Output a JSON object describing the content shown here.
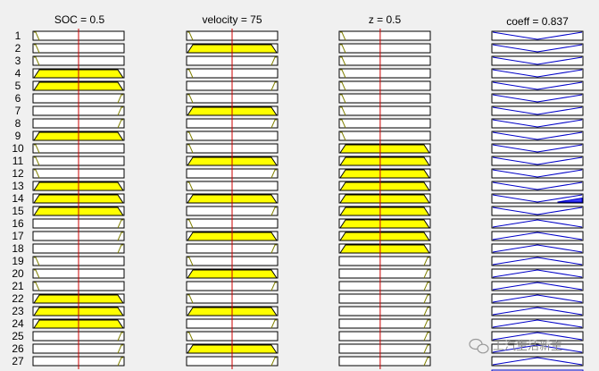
{
  "rule_viewer": {
    "rule_count": 27,
    "inputs": [
      {
        "title": "SOC = 0.5",
        "value": 0.5,
        "marker_fraction": 0.5,
        "rules": [
          {
            "rule": 1,
            "mf": "low",
            "fired": false
          },
          {
            "rule": 2,
            "mf": "low",
            "fired": false
          },
          {
            "rule": 3,
            "mf": "low",
            "fired": false
          },
          {
            "rule": 4,
            "mf": "medium",
            "fired": true
          },
          {
            "rule": 5,
            "mf": "medium",
            "fired": true
          },
          {
            "rule": 6,
            "mf": "high",
            "fired": false
          },
          {
            "rule": 7,
            "mf": "high",
            "fired": false
          },
          {
            "rule": 8,
            "mf": "high",
            "fired": false
          },
          {
            "rule": 9,
            "mf": "medium",
            "fired": true
          },
          {
            "rule": 10,
            "mf": "low",
            "fired": false
          },
          {
            "rule": 11,
            "mf": "low",
            "fired": false
          },
          {
            "rule": 12,
            "mf": "low",
            "fired": false
          },
          {
            "rule": 13,
            "mf": "medium",
            "fired": true
          },
          {
            "rule": 14,
            "mf": "medium",
            "fired": true
          },
          {
            "rule": 15,
            "mf": "medium",
            "fired": true
          },
          {
            "rule": 16,
            "mf": "high",
            "fired": false
          },
          {
            "rule": 17,
            "mf": "high",
            "fired": false
          },
          {
            "rule": 18,
            "mf": "high",
            "fired": false
          },
          {
            "rule": 19,
            "mf": "low",
            "fired": false
          },
          {
            "rule": 20,
            "mf": "low",
            "fired": false
          },
          {
            "rule": 21,
            "mf": "low",
            "fired": false
          },
          {
            "rule": 22,
            "mf": "medium",
            "fired": true
          },
          {
            "rule": 23,
            "mf": "medium",
            "fired": true
          },
          {
            "rule": 24,
            "mf": "medium",
            "fired": true
          },
          {
            "rule": 25,
            "mf": "high",
            "fired": false
          },
          {
            "rule": 26,
            "mf": "high",
            "fired": false
          },
          {
            "rule": 27,
            "mf": "high",
            "fired": false
          }
        ]
      },
      {
        "title": "velocity = 75",
        "value": 75,
        "marker_fraction": 0.5,
        "rules": [
          {
            "rule": 1,
            "mf": "low",
            "fired": false
          },
          {
            "rule": 2,
            "mf": "medium",
            "fired": true
          },
          {
            "rule": 3,
            "mf": "high",
            "fired": false
          },
          {
            "rule": 4,
            "mf": "low",
            "fired": false
          },
          {
            "rule": 5,
            "mf": "high",
            "fired": false
          },
          {
            "rule": 6,
            "mf": "low",
            "fired": false
          },
          {
            "rule": 7,
            "mf": "medium",
            "fired": true
          },
          {
            "rule": 8,
            "mf": "high",
            "fired": false
          },
          {
            "rule": 9,
            "mf": "low",
            "fired": false
          },
          {
            "rule": 10,
            "mf": "low",
            "fired": false
          },
          {
            "rule": 11,
            "mf": "medium",
            "fired": true
          },
          {
            "rule": 12,
            "mf": "high",
            "fired": false
          },
          {
            "rule": 13,
            "mf": "low",
            "fired": false
          },
          {
            "rule": 14,
            "mf": "medium",
            "fired": true
          },
          {
            "rule": 15,
            "mf": "high",
            "fired": false
          },
          {
            "rule": 16,
            "mf": "low",
            "fired": false
          },
          {
            "rule": 17,
            "mf": "medium",
            "fired": true
          },
          {
            "rule": 18,
            "mf": "high",
            "fired": false
          },
          {
            "rule": 19,
            "mf": "low",
            "fired": false
          },
          {
            "rule": 20,
            "mf": "medium",
            "fired": true
          },
          {
            "rule": 21,
            "mf": "high",
            "fired": false
          },
          {
            "rule": 22,
            "mf": "low",
            "fired": false
          },
          {
            "rule": 23,
            "mf": "medium",
            "fired": true
          },
          {
            "rule": 24,
            "mf": "high",
            "fired": false
          },
          {
            "rule": 25,
            "mf": "low",
            "fired": false
          },
          {
            "rule": 26,
            "mf": "medium",
            "fired": true
          },
          {
            "rule": 27,
            "mf": "high",
            "fired": false
          }
        ]
      },
      {
        "title": "z = 0.5",
        "value": 0.5,
        "marker_fraction": 0.45,
        "rules": [
          {
            "rule": 1,
            "mf": "low",
            "fired": false
          },
          {
            "rule": 2,
            "mf": "low",
            "fired": false
          },
          {
            "rule": 3,
            "mf": "low",
            "fired": false
          },
          {
            "rule": 4,
            "mf": "low",
            "fired": false
          },
          {
            "rule": 5,
            "mf": "low",
            "fired": false
          },
          {
            "rule": 6,
            "mf": "low",
            "fired": false
          },
          {
            "rule": 7,
            "mf": "low",
            "fired": false
          },
          {
            "rule": 8,
            "mf": "low",
            "fired": false
          },
          {
            "rule": 9,
            "mf": "low",
            "fired": false
          },
          {
            "rule": 10,
            "mf": "medium",
            "fired": true
          },
          {
            "rule": 11,
            "mf": "medium",
            "fired": true
          },
          {
            "rule": 12,
            "mf": "medium",
            "fired": true
          },
          {
            "rule": 13,
            "mf": "medium",
            "fired": true
          },
          {
            "rule": 14,
            "mf": "medium",
            "fired": true
          },
          {
            "rule": 15,
            "mf": "medium",
            "fired": true
          },
          {
            "rule": 16,
            "mf": "medium",
            "fired": true
          },
          {
            "rule": 17,
            "mf": "medium",
            "fired": true
          },
          {
            "rule": 18,
            "mf": "medium",
            "fired": true
          },
          {
            "rule": 19,
            "mf": "high",
            "fired": false
          },
          {
            "rule": 20,
            "mf": "high",
            "fired": false
          },
          {
            "rule": 21,
            "mf": "high",
            "fired": false
          },
          {
            "rule": 22,
            "mf": "high",
            "fired": false
          },
          {
            "rule": 23,
            "mf": "high",
            "fired": false
          },
          {
            "rule": 24,
            "mf": "high",
            "fired": false
          },
          {
            "rule": 25,
            "mf": "high",
            "fired": false
          },
          {
            "rule": 26,
            "mf": "high",
            "fired": false
          },
          {
            "rule": 27,
            "mf": "high",
            "fired": false
          }
        ]
      }
    ],
    "output": {
      "title": "coeff = 0.837",
      "value": 0.837,
      "rules": [
        {
          "rule": 1,
          "mf": "upper",
          "fill": 0
        },
        {
          "rule": 2,
          "mf": "upper",
          "fill": 0
        },
        {
          "rule": 3,
          "mf": "upper",
          "fill": 0
        },
        {
          "rule": 4,
          "mf": "upper",
          "fill": 0
        },
        {
          "rule": 5,
          "mf": "upper",
          "fill": 0
        },
        {
          "rule": 6,
          "mf": "upper",
          "fill": 0
        },
        {
          "rule": 7,
          "mf": "upper",
          "fill": 0
        },
        {
          "rule": 8,
          "mf": "upper",
          "fill": 0
        },
        {
          "rule": 9,
          "mf": "upper",
          "fill": 0
        },
        {
          "rule": 10,
          "mf": "upper",
          "fill": 0
        },
        {
          "rule": 11,
          "mf": "upper",
          "fill": 0
        },
        {
          "rule": 12,
          "mf": "upper",
          "fill": 0
        },
        {
          "rule": 13,
          "mf": "upper",
          "fill": 0
        },
        {
          "rule": 14,
          "mf": "upper",
          "fill": 0.55
        },
        {
          "rule": 15,
          "mf": "upper",
          "fill": 0
        },
        {
          "rule": 16,
          "mf": "lower",
          "fill": 0
        },
        {
          "rule": 17,
          "mf": "lower",
          "fill": 0
        },
        {
          "rule": 18,
          "mf": "lower",
          "fill": 0
        },
        {
          "rule": 19,
          "mf": "lower",
          "fill": 0
        },
        {
          "rule": 20,
          "mf": "lower",
          "fill": 0
        },
        {
          "rule": 21,
          "mf": "lower",
          "fill": 0
        },
        {
          "rule": 22,
          "mf": "lower",
          "fill": 0
        },
        {
          "rule": 23,
          "mf": "lower",
          "fill": 0
        },
        {
          "rule": 24,
          "mf": "lower",
          "fill": 0
        },
        {
          "rule": 25,
          "mf": "lower",
          "fill": 0
        },
        {
          "rule": 26,
          "mf": "lower",
          "fill": 0
        },
        {
          "rule": 27,
          "mf": "lower",
          "fill": 0
        }
      ]
    }
  },
  "colors": {
    "background": "#f0f0f0",
    "input_fill": "#ffff00",
    "input_edge": "#808000",
    "marker": "#cc0000",
    "output_line": "#0000c8",
    "output_fill": "#4040ff"
  },
  "watermark": {
    "icon": "wechat-icon",
    "text": "上汽生活新主"
  }
}
